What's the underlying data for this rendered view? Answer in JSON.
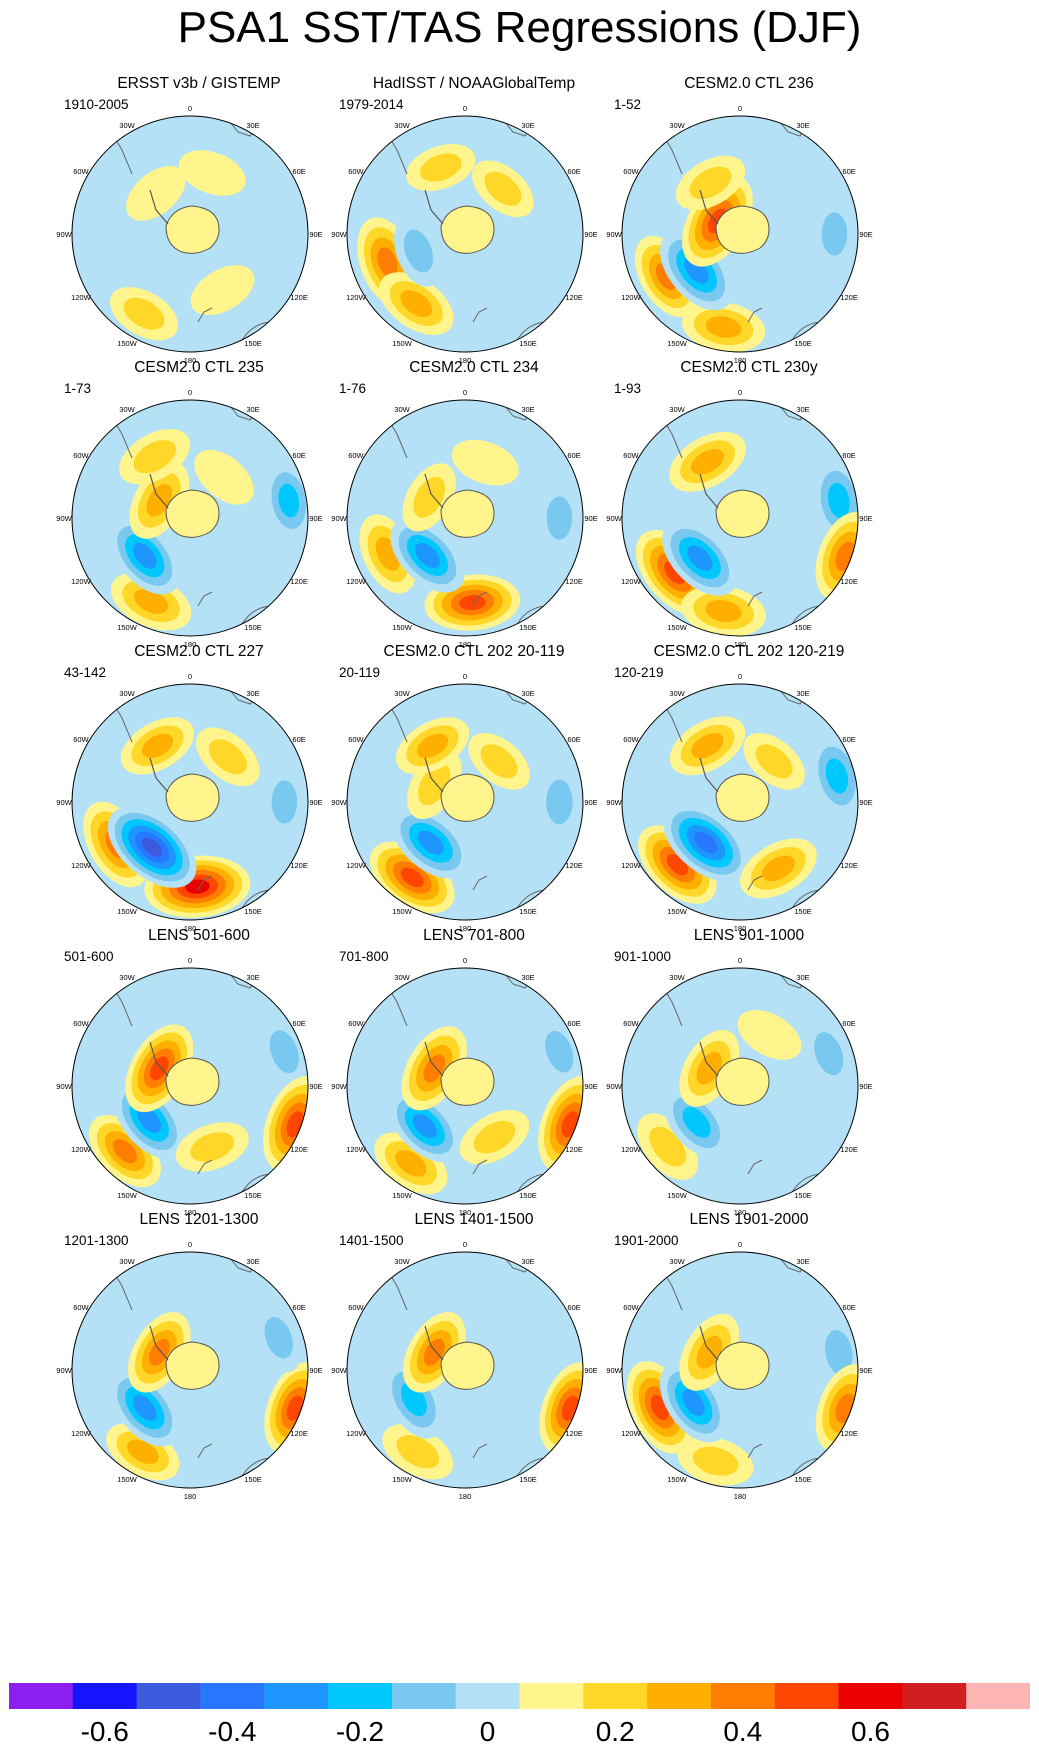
{
  "figure": {
    "title": "PSA1 SST/TAS Regressions (DJF)"
  },
  "longitude_labels": [
    "0",
    "30E",
    "60E",
    "90E",
    "120E",
    "150E",
    "180",
    "150W",
    "120W",
    "90W",
    "60W",
    "30W"
  ],
  "panels": [
    {
      "title": "ERSST v3b / GISTEMP",
      "period": "1910-2005"
    },
    {
      "title": "HadISST / NOAAGlobalTemp",
      "period": "1979-2014"
    },
    {
      "title": "CESM2.0 CTL 236",
      "period": "1-52"
    },
    {
      "title": "CESM2.0 CTL 235",
      "period": "1-73"
    },
    {
      "title": "CESM2.0 CTL 234",
      "period": "1-76"
    },
    {
      "title": "CESM2.0 CTL 230y",
      "period": "1-93"
    },
    {
      "title": "CESM2.0 CTL 227",
      "period": "43-142"
    },
    {
      "title": "CESM2.0 CTL 202 20-119",
      "period": "20-119"
    },
    {
      "title": "CESM2.0 CTL 202 120-219",
      "period": "120-219"
    },
    {
      "title": "LENS 501-600",
      "period": "501-600"
    },
    {
      "title": "LENS 701-800",
      "period": "701-800"
    },
    {
      "title": "LENS 901-1000",
      "period": "901-1000"
    },
    {
      "title": "LENS 1201-1300",
      "period": "1201-1300"
    },
    {
      "title": "LENS 1401-1500",
      "period": "1401-1500"
    },
    {
      "title": "LENS 1901-2000",
      "period": "1901-2000"
    }
  ],
  "colorbar": {
    "colors": [
      "#8c1ef0",
      "#1414ff",
      "#3c5adc",
      "#2878ff",
      "#1e96ff",
      "#00c8ff",
      "#78c8f0",
      "#b4e1f5",
      "#fff58c",
      "#ffd728",
      "#ffaf00",
      "#ff7d00",
      "#ff4600",
      "#eb0000",
      "#d21e1e",
      "#ffb4b4"
    ],
    "tick_labels": [
      "-0.6",
      "-0.4",
      "-0.2",
      "0",
      "0.2",
      "0.4",
      "0.6"
    ]
  },
  "chart_data": {
    "type": "heatmap",
    "title": "PSA1 SST/TAS Regressions (DJF)",
    "projection": "south polar stereographic",
    "variable": "SST/TAS regression onto PSA1",
    "season": "DJF",
    "contour_levels": [
      -0.7,
      -0.6,
      -0.5,
      -0.4,
      -0.3,
      -0.2,
      -0.1,
      0,
      0.1,
      0.2,
      0.3,
      0.4,
      0.5,
      0.6,
      0.7
    ],
    "colorbar_range": [
      -0.8,
      0.8
    ],
    "panels": [
      {
        "title": "ERSST v3b / GISTEMP",
        "period": "1910-2005",
        "blobs": [
          {
            "lon": 210,
            "r": 0.78,
            "v": 0.18
          },
          {
            "lon": 270,
            "r": 0.55,
            "v": -0.12
          },
          {
            "lon": 150,
            "r": 0.55,
            "v": 0.12
          },
          {
            "lon": 320,
            "r": 0.45,
            "v": 0.12
          },
          {
            "lon": 90,
            "r": 0.75,
            "v": -0.12
          },
          {
            "lon": 20,
            "r": 0.55,
            "v": 0.12
          }
        ]
      },
      {
        "title": "HadISST / NOAAGlobalTemp",
        "period": "1979-2014",
        "blobs": [
          {
            "lon": 250,
            "r": 0.7,
            "v": 0.42
          },
          {
            "lon": 215,
            "r": 0.72,
            "v": 0.3
          },
          {
            "lon": 250,
            "r": 0.42,
            "v": -0.18
          },
          {
            "lon": 90,
            "r": 0.8,
            "v": -0.12
          },
          {
            "lon": 340,
            "r": 0.6,
            "v": 0.15
          },
          {
            "lon": 40,
            "r": 0.5,
            "v": 0.15
          }
        ]
      },
      {
        "title": "CESM2.0 CTL 236",
        "period": "1-52",
        "blobs": [
          {
            "lon": 240,
            "r": 0.72,
            "v": 0.36
          },
          {
            "lon": 190,
            "r": 0.8,
            "v": 0.3
          },
          {
            "lon": 230,
            "r": 0.48,
            "v": -0.42
          },
          {
            "lon": 300,
            "r": 0.22,
            "v": 0.5
          },
          {
            "lon": 90,
            "r": 0.8,
            "v": -0.15
          },
          {
            "lon": 330,
            "r": 0.5,
            "v": 0.2
          }
        ]
      },
      {
        "title": "CESM2.0 CTL 235",
        "period": "1-73",
        "blobs": [
          {
            "lon": 205,
            "r": 0.78,
            "v": 0.32
          },
          {
            "lon": 230,
            "r": 0.5,
            "v": -0.38
          },
          {
            "lon": 300,
            "r": 0.3,
            "v": 0.3
          },
          {
            "lon": 330,
            "r": 0.6,
            "v": 0.22
          },
          {
            "lon": 80,
            "r": 0.85,
            "v": -0.25
          },
          {
            "lon": 40,
            "r": 0.45,
            "v": 0.12
          }
        ]
      },
      {
        "title": "CESM2.0 CTL 234",
        "period": "1-76",
        "blobs": [
          {
            "lon": 175,
            "r": 0.72,
            "v": 0.45
          },
          {
            "lon": 245,
            "r": 0.72,
            "v": 0.3
          },
          {
            "lon": 225,
            "r": 0.45,
            "v": -0.38
          },
          {
            "lon": 300,
            "r": 0.35,
            "v": 0.18
          },
          {
            "lon": 90,
            "r": 0.8,
            "v": -0.15
          },
          {
            "lon": 20,
            "r": 0.5,
            "v": 0.12
          }
        ]
      },
      {
        "title": "CESM2.0 CTL 230y",
        "period": "1-93",
        "blobs": [
          {
            "lon": 230,
            "r": 0.72,
            "v": 0.5
          },
          {
            "lon": 190,
            "r": 0.8,
            "v": 0.32
          },
          {
            "lon": 225,
            "r": 0.48,
            "v": -0.4
          },
          {
            "lon": 330,
            "r": 0.55,
            "v": 0.3
          },
          {
            "lon": 80,
            "r": 0.85,
            "v": -0.3
          },
          {
            "lon": 110,
            "r": 0.95,
            "v": 0.4
          }
        ]
      },
      {
        "title": "CESM2.0 CTL 227",
        "period": "43-142",
        "blobs": [
          {
            "lon": 175,
            "r": 0.72,
            "v": 0.58
          },
          {
            "lon": 240,
            "r": 0.72,
            "v": 0.42
          },
          {
            "lon": 220,
            "r": 0.5,
            "v": -0.55
          },
          {
            "lon": 330,
            "r": 0.55,
            "v": 0.25
          },
          {
            "lon": 90,
            "r": 0.8,
            "v": -0.15
          },
          {
            "lon": 40,
            "r": 0.5,
            "v": 0.18
          }
        ]
      },
      {
        "title": "CESM2.0 CTL 202 20-119",
        "period": "20-119",
        "blobs": [
          {
            "lon": 215,
            "r": 0.78,
            "v": 0.45
          },
          {
            "lon": 220,
            "r": 0.45,
            "v": -0.4
          },
          {
            "lon": 300,
            "r": 0.3,
            "v": 0.2
          },
          {
            "lon": 330,
            "r": 0.55,
            "v": 0.25
          },
          {
            "lon": 90,
            "r": 0.8,
            "v": -0.18
          },
          {
            "lon": 40,
            "r": 0.45,
            "v": 0.15
          }
        ]
      },
      {
        "title": "CESM2.0 CTL 202 120-219",
        "period": "120-219",
        "blobs": [
          {
            "lon": 225,
            "r": 0.75,
            "v": 0.45
          },
          {
            "lon": 220,
            "r": 0.45,
            "v": -0.5
          },
          {
            "lon": 150,
            "r": 0.65,
            "v": 0.3
          },
          {
            "lon": 330,
            "r": 0.55,
            "v": 0.28
          },
          {
            "lon": 75,
            "r": 0.85,
            "v": -0.3
          },
          {
            "lon": 40,
            "r": 0.45,
            "v": 0.15
          }
        ]
      },
      {
        "title": "LENS 501-600",
        "period": "501-600",
        "blobs": [
          {
            "lon": 225,
            "r": 0.78,
            "v": 0.35
          },
          {
            "lon": 230,
            "r": 0.45,
            "v": -0.38
          },
          {
            "lon": 300,
            "r": 0.3,
            "v": 0.45
          },
          {
            "lon": 160,
            "r": 0.55,
            "v": 0.2
          },
          {
            "lon": 70,
            "r": 0.85,
            "v": -0.18
          },
          {
            "lon": 110,
            "r": 0.95,
            "v": 0.5
          }
        ]
      },
      {
        "title": "LENS 701-800",
        "period": "701-800",
        "blobs": [
          {
            "lon": 215,
            "r": 0.8,
            "v": 0.28
          },
          {
            "lon": 225,
            "r": 0.48,
            "v": -0.35
          },
          {
            "lon": 300,
            "r": 0.3,
            "v": 0.4
          },
          {
            "lon": 150,
            "r": 0.5,
            "v": 0.2
          },
          {
            "lon": 70,
            "r": 0.85,
            "v": -0.15
          },
          {
            "lon": 110,
            "r": 0.95,
            "v": 0.5
          }
        ]
      },
      {
        "title": "LENS 901-1000",
        "period": "901-1000",
        "blobs": [
          {
            "lon": 230,
            "r": 0.8,
            "v": 0.22
          },
          {
            "lon": 230,
            "r": 0.48,
            "v": -0.3
          },
          {
            "lon": 300,
            "r": 0.3,
            "v": 0.3
          },
          {
            "lon": 70,
            "r": 0.8,
            "v": -0.18
          },
          {
            "lon": 30,
            "r": 0.5,
            "v": 0.12
          }
        ]
      },
      {
        "title": "LENS 1201-1300",
        "period": "1201-1300",
        "blobs": [
          {
            "lon": 210,
            "r": 0.8,
            "v": 0.25
          },
          {
            "lon": 230,
            "r": 0.5,
            "v": -0.38
          },
          {
            "lon": 300,
            "r": 0.3,
            "v": 0.35
          },
          {
            "lon": 110,
            "r": 0.95,
            "v": 0.45
          },
          {
            "lon": 70,
            "r": 0.8,
            "v": -0.15
          }
        ]
      },
      {
        "title": "LENS 1401-1500",
        "period": "1401-1500",
        "blobs": [
          {
            "lon": 210,
            "r": 0.8,
            "v": 0.22
          },
          {
            "lon": 240,
            "r": 0.5,
            "v": -0.32
          },
          {
            "lon": 300,
            "r": 0.3,
            "v": 0.35
          },
          {
            "lon": 110,
            "r": 0.95,
            "v": 0.45
          },
          {
            "lon": 60,
            "r": 0.8,
            "v": -0.12
          }
        ]
      },
      {
        "title": "LENS 1901-2000",
        "period": "1901-2000",
        "blobs": [
          {
            "lon": 245,
            "r": 0.75,
            "v": 0.48
          },
          {
            "lon": 195,
            "r": 0.8,
            "v": 0.22
          },
          {
            "lon": 235,
            "r": 0.48,
            "v": -0.38
          },
          {
            "lon": 300,
            "r": 0.3,
            "v": 0.3
          },
          {
            "lon": 80,
            "r": 0.85,
            "v": -0.2
          },
          {
            "lon": 110,
            "r": 0.95,
            "v": 0.4
          }
        ]
      }
    ]
  }
}
